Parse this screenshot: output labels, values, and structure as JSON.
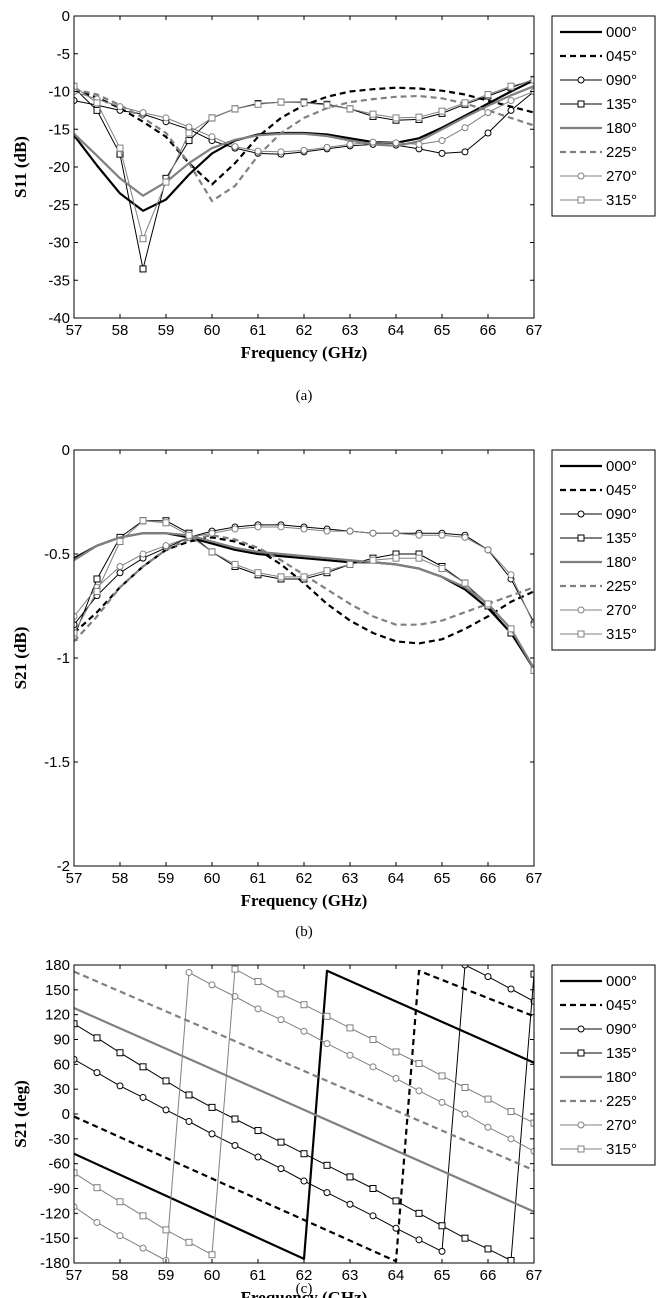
{
  "chart_data": [
    {
      "type": "line",
      "caption": "(a)",
      "xlabel": "Frequency (GHz)",
      "ylabel": "S11 (dB)",
      "xlim": [
        57,
        67
      ],
      "ylim": [
        -40,
        0
      ],
      "xticks": [
        57,
        58,
        59,
        60,
        61,
        62,
        63,
        64,
        65,
        66,
        67
      ],
      "yticks": [
        -40,
        -35,
        -30,
        -25,
        -20,
        -15,
        -10,
        -5,
        0
      ],
      "grid": false,
      "legend": "outside-right",
      "x": [
        57,
        57.5,
        58,
        58.5,
        59,
        59.5,
        60,
        60.5,
        61,
        61.5,
        62,
        62.5,
        63,
        63.5,
        64,
        64.5,
        65,
        65.5,
        66,
        66.5,
        67
      ],
      "series": [
        {
          "name": "000°",
          "values": [
            -15.8,
            -19.8,
            -23.5,
            -25.8,
            -24.3,
            -21.0,
            -18.2,
            -16.5,
            -15.7,
            -15.5,
            -15.5,
            -15.7,
            -16.2,
            -16.7,
            -16.8,
            -16.2,
            -14.8,
            -13.2,
            -11.6,
            -10.0,
            -8.5
          ]
        },
        {
          "name": "045°",
          "values": [
            -9.8,
            -10.8,
            -12.2,
            -14.0,
            -16.0,
            -19.5,
            -22.3,
            -19.5,
            -16.0,
            -13.5,
            -11.8,
            -10.7,
            -10.0,
            -9.7,
            -9.5,
            -9.6,
            -9.9,
            -10.4,
            -11.2,
            -12.0,
            -12.8
          ]
        },
        {
          "name": "090°",
          "values": [
            -11.2,
            -11.8,
            -12.5,
            -13.0,
            -14.0,
            -15.0,
            -16.5,
            -17.5,
            -18.2,
            -18.3,
            -18.0,
            -17.6,
            -17.2,
            -17.0,
            -17.1,
            -17.6,
            -18.2,
            -18.0,
            -15.5,
            -12.5,
            -10.0
          ]
        },
        {
          "name": "135°",
          "values": [
            -9.5,
            -12.5,
            -18.3,
            -33.5,
            -21.5,
            -16.5,
            -13.5,
            -12.3,
            -11.6,
            -11.4,
            -11.4,
            -11.7,
            -12.3,
            -13.3,
            -13.8,
            -13.7,
            -12.9,
            -11.7,
            -10.6,
            -9.5,
            -8.4
          ]
        },
        {
          "name": "180°",
          "values": [
            -15.6,
            -18.5,
            -21.5,
            -23.8,
            -22.0,
            -19.5,
            -17.5,
            -16.4,
            -15.8,
            -15.6,
            -15.6,
            -15.9,
            -16.5,
            -17.0,
            -17.2,
            -16.6,
            -15.0,
            -13.4,
            -11.9,
            -10.5,
            -9.3
          ]
        },
        {
          "name": "225°",
          "values": [
            -9.7,
            -10.4,
            -11.8,
            -13.5,
            -15.5,
            -19.5,
            -24.5,
            -22.5,
            -18.5,
            -15.5,
            -13.5,
            -12.2,
            -11.4,
            -11.0,
            -10.7,
            -10.6,
            -10.9,
            -11.6,
            -12.5,
            -13.5,
            -14.5
          ]
        },
        {
          "name": "270°",
          "values": [
            -10.0,
            -11.0,
            -12.0,
            -12.8,
            -13.5,
            -14.7,
            -16.0,
            -17.3,
            -17.9,
            -18.0,
            -17.8,
            -17.4,
            -17.0,
            -16.7,
            -16.8,
            -17.0,
            -16.5,
            -14.8,
            -12.8,
            -11.2,
            -10.0
          ]
        },
        {
          "name": "315°",
          "values": [
            -9.3,
            -11.5,
            -17.5,
            -29.5,
            -22.0,
            -15.5,
            -13.5,
            -12.3,
            -11.7,
            -11.4,
            -11.5,
            -11.8,
            -12.3,
            -13.0,
            -13.5,
            -13.4,
            -12.6,
            -11.5,
            -10.4,
            -9.3,
            -8.5
          ]
        }
      ]
    },
    {
      "type": "line",
      "caption": "(b)",
      "xlabel": "Frequency (GHz)",
      "ylabel": "S21 (dB)",
      "xlim": [
        57,
        67
      ],
      "ylim": [
        -2,
        0
      ],
      "xticks": [
        57,
        58,
        59,
        60,
        61,
        62,
        63,
        64,
        65,
        66,
        67
      ],
      "yticks": [
        -2,
        -1.5,
        -1,
        -0.5,
        0
      ],
      "grid": false,
      "legend": "outside-right",
      "x": [
        57,
        57.5,
        58,
        58.5,
        59,
        59.5,
        60,
        60.5,
        61,
        61.5,
        62,
        62.5,
        63,
        63.5,
        64,
        64.5,
        65,
        65.5,
        66,
        66.5,
        67
      ],
      "series": [
        {
          "name": "000°",
          "values": [
            -0.52,
            -0.46,
            -0.42,
            -0.4,
            -0.4,
            -0.42,
            -0.45,
            -0.48,
            -0.5,
            -0.51,
            -0.52,
            -0.53,
            -0.54,
            -0.54,
            -0.55,
            -0.57,
            -0.61,
            -0.67,
            -0.76,
            -0.88,
            -1.05
          ]
        },
        {
          "name": "045°",
          "values": [
            -0.88,
            -0.78,
            -0.66,
            -0.56,
            -0.48,
            -0.44,
            -0.42,
            -0.44,
            -0.48,
            -0.55,
            -0.64,
            -0.74,
            -0.82,
            -0.88,
            -0.92,
            -0.93,
            -0.91,
            -0.86,
            -0.8,
            -0.73,
            -0.68
          ]
        },
        {
          "name": "090°",
          "values": [
            -0.84,
            -0.7,
            -0.59,
            -0.52,
            -0.47,
            -0.42,
            -0.39,
            -0.37,
            -0.36,
            -0.36,
            -0.37,
            -0.38,
            -0.39,
            -0.4,
            -0.4,
            -0.4,
            -0.4,
            -0.41,
            -0.48,
            -0.62,
            -0.83
          ]
        },
        {
          "name": "135°",
          "values": [
            -0.9,
            -0.62,
            -0.42,
            -0.34,
            -0.34,
            -0.4,
            -0.49,
            -0.56,
            -0.6,
            -0.62,
            -0.62,
            -0.59,
            -0.55,
            -0.52,
            -0.5,
            -0.5,
            -0.56,
            -0.64,
            -0.75,
            -0.88,
            -1.06
          ]
        },
        {
          "name": "180°",
          "values": [
            -0.53,
            -0.46,
            -0.42,
            -0.4,
            -0.4,
            -0.41,
            -0.44,
            -0.47,
            -0.49,
            -0.5,
            -0.51,
            -0.52,
            -0.53,
            -0.54,
            -0.55,
            -0.57,
            -0.61,
            -0.66,
            -0.74,
            -0.86,
            -1.05
          ]
        },
        {
          "name": "225°",
          "values": [
            -0.92,
            -0.8,
            -0.66,
            -0.56,
            -0.48,
            -0.43,
            -0.41,
            -0.43,
            -0.47,
            -0.53,
            -0.6,
            -0.67,
            -0.74,
            -0.8,
            -0.84,
            -0.84,
            -0.82,
            -0.78,
            -0.74,
            -0.7,
            -0.66
          ]
        },
        {
          "name": "270°",
          "values": [
            -0.8,
            -0.66,
            -0.56,
            -0.5,
            -0.46,
            -0.42,
            -0.4,
            -0.38,
            -0.37,
            -0.37,
            -0.38,
            -0.39,
            -0.39,
            -0.4,
            -0.4,
            -0.41,
            -0.41,
            -0.42,
            -0.48,
            -0.6,
            -0.84
          ]
        },
        {
          "name": "315°",
          "values": [
            -0.88,
            -0.68,
            -0.44,
            -0.34,
            -0.35,
            -0.41,
            -0.49,
            -0.55,
            -0.59,
            -0.61,
            -0.61,
            -0.58,
            -0.55,
            -0.53,
            -0.52,
            -0.52,
            -0.57,
            -0.64,
            -0.74,
            -0.86,
            -1.06
          ]
        }
      ]
    },
    {
      "type": "line",
      "caption": "(c)",
      "xlabel": "Frequency (GHz)",
      "ylabel": "S21 (deg)",
      "xlim": [
        57,
        67
      ],
      "ylim": [
        -180,
        180
      ],
      "xticks": [
        57,
        58,
        59,
        60,
        61,
        62,
        63,
        64,
        65,
        66,
        67
      ],
      "yticks": [
        -180,
        -150,
        -120,
        -90,
        -60,
        -30,
        0,
        30,
        60,
        90,
        120,
        150,
        180
      ],
      "grid": false,
      "legend": "outside-right",
      "series": [
        {
          "name": "000°",
          "x": [
            57,
            62,
            62.5,
            67
          ],
          "values": [
            -48,
            -175,
            173,
            62
          ]
        },
        {
          "name": "045°",
          "x": [
            57,
            64,
            64.5,
            67
          ],
          "values": [
            -3,
            -178,
            173,
            118
          ]
        },
        {
          "name": "090°",
          "x": [
            57,
            57.5,
            58,
            58.5,
            59,
            59.5,
            60,
            60.5,
            61,
            61.5,
            62,
            62.5,
            63,
            63.5,
            64,
            64.5,
            65,
            65.5,
            66,
            66.5,
            67
          ],
          "values": [
            66,
            50,
            34,
            20,
            5,
            -9,
            -24,
            -38,
            -52,
            -66,
            -81,
            -95,
            -109,
            -123,
            -138,
            -152,
            -166,
            180,
            166,
            151,
            136
          ]
        },
        {
          "name": "135°",
          "x": [
            57,
            57.5,
            58,
            58.5,
            59,
            59.5,
            60,
            60.5,
            61,
            61.5,
            62,
            62.5,
            63,
            63.5,
            64,
            64.5,
            65,
            65.5,
            66,
            66.5,
            67
          ],
          "values": [
            109,
            92,
            74,
            57,
            40,
            23,
            8,
            -6,
            -20,
            -34,
            -48,
            -62,
            -76,
            -90,
            -105,
            -120,
            -135,
            -150,
            -163,
            -177,
            169
          ]
        },
        {
          "name": "180°",
          "x": [
            57,
            67
          ],
          "values": [
            128,
            -118
          ]
        },
        {
          "name": "225°",
          "x": [
            57,
            67
          ],
          "values": [
            172,
            -68
          ]
        },
        {
          "name": "270°",
          "x": [
            57,
            57.5,
            58,
            58.5,
            59,
            59.5,
            60,
            60.5,
            61,
            61.5,
            62,
            62.5,
            63,
            63.5,
            64,
            64.5,
            65,
            65.5,
            66,
            66.5,
            67
          ],
          "values": [
            -112,
            -131,
            -147,
            -162,
            -177,
            171,
            156,
            142,
            127,
            114,
            100,
            85,
            71,
            57,
            43,
            28,
            14,
            0,
            -16,
            -30,
            -45
          ]
        },
        {
          "name": "315°",
          "x": [
            57,
            57.5,
            58,
            58.5,
            59,
            59.5,
            60,
            60.5,
            61,
            61.5,
            62,
            62.5,
            63,
            63.5,
            64,
            64.5,
            65,
            65.5,
            66,
            66.5,
            67
          ],
          "values": [
            -71,
            -89,
            -106,
            -123,
            -140,
            -155,
            -170,
            175,
            160,
            145,
            132,
            118,
            104,
            90,
            75,
            61,
            46,
            32,
            18,
            3,
            -11
          ]
        }
      ]
    }
  ],
  "styles": [
    {
      "color": "#000000",
      "dash": "",
      "marker": "none"
    },
    {
      "color": "#000000",
      "dash": "6,4",
      "marker": "none"
    },
    {
      "color": "#000000",
      "dash": "",
      "marker": "circle",
      "thin": true
    },
    {
      "color": "#000000",
      "dash": "",
      "marker": "square",
      "thin": true
    },
    {
      "color": "#808080",
      "dash": "",
      "marker": "none"
    },
    {
      "color": "#808080",
      "dash": "6,4",
      "marker": "none"
    },
    {
      "color": "#808080",
      "dash": "",
      "marker": "circle",
      "thin": true
    },
    {
      "color": "#808080",
      "dash": "",
      "marker": "square",
      "thin": true
    }
  ]
}
